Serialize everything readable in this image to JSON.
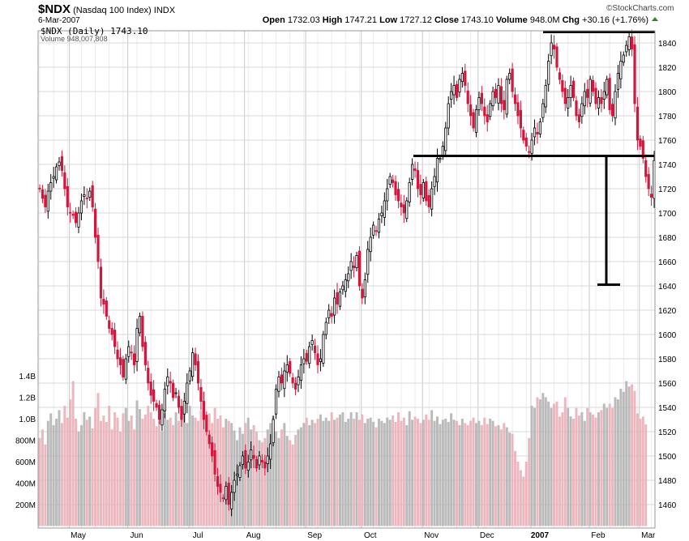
{
  "header": {
    "symbol": "$NDX",
    "name": "(Nasdaq 100 Index)",
    "exchange": "INDX",
    "date": "6-Mar-2007",
    "open_label": "Open",
    "open": "1732.03",
    "high_label": "High",
    "high": "1747.21",
    "low_label": "Low",
    "low": "1727.12",
    "close_label": "Close",
    "close": "1743.10",
    "volume_label": "Volume",
    "volume": "948.0M",
    "chg_label": "Chg",
    "chg": "+30.16 (+1.76%)",
    "copyright": "©StockCharts.com"
  },
  "legend": {
    "price": "$NDX (Daily) 1743.10",
    "volume": "Volume 948,007,808"
  },
  "colors": {
    "up": "#000000",
    "down": "#d2163c",
    "vol_up": "#b4b4b4",
    "vol_down": "#eab0b8",
    "grid": "#d8d8d8"
  },
  "chart_data": {
    "type": "candlestick",
    "price_axis": {
      "min": 1450,
      "max": 1850,
      "ticks": [
        1460,
        1480,
        1500,
        1520,
        1540,
        1560,
        1580,
        1600,
        1620,
        1640,
        1660,
        1680,
        1700,
        1720,
        1740,
        1760,
        1780,
        1800,
        1820,
        1840
      ]
    },
    "volume_axis": {
      "ticks": [
        {
          "v": 200,
          "label": "200M"
        },
        {
          "v": 400,
          "label": "400M"
        },
        {
          "v": 600,
          "label": "600M"
        },
        {
          "v": 800,
          "label": "800M"
        },
        {
          "v": 1000,
          "label": "1.0B"
        },
        {
          "v": 1200,
          "label": "1.2B"
        },
        {
          "v": 1400,
          "label": "1.4B"
        }
      ]
    },
    "months": [
      {
        "i": 13,
        "label": "May"
      },
      {
        "i": 34,
        "label": "Jun"
      },
      {
        "i": 56,
        "label": "Jul"
      },
      {
        "i": 76,
        "label": "Aug"
      },
      {
        "i": 98,
        "label": "Sep"
      },
      {
        "i": 118,
        "label": "Oct"
      },
      {
        "i": 140,
        "label": "Nov"
      },
      {
        "i": 160,
        "label": "Dec"
      },
      {
        "i": 179,
        "label": "2007",
        "bold": true
      },
      {
        "i": 200,
        "label": "Feb"
      },
      {
        "i": 218,
        "label": "Mar"
      }
    ],
    "close": [
      1720,
      1712,
      1705,
      1718,
      1725,
      1730,
      1738,
      1742,
      1735,
      1720,
      1705,
      1700,
      1698,
      1692,
      1700,
      1710,
      1715,
      1712,
      1718,
      1705,
      1680,
      1660,
      1630,
      1625,
      1615,
      1605,
      1600,
      1590,
      1580,
      1575,
      1565,
      1580,
      1590,
      1585,
      1575,
      1605,
      1615,
      1590,
      1575,
      1560,
      1550,
      1545,
      1540,
      1530,
      1538,
      1555,
      1565,
      1560,
      1548,
      1552,
      1540,
      1530,
      1545,
      1560,
      1570,
      1585,
      1575,
      1560,
      1545,
      1530,
      1520,
      1510,
      1500,
      1485,
      1475,
      1470,
      1465,
      1475,
      1460,
      1470,
      1480,
      1485,
      1492,
      1500,
      1490,
      1495,
      1505,
      1498,
      1490,
      1500,
      1495,
      1490,
      1500,
      1510,
      1530,
      1555,
      1565,
      1560,
      1570,
      1575,
      1568,
      1560,
      1555,
      1565,
      1575,
      1580,
      1578,
      1590,
      1595,
      1585,
      1575,
      1580,
      1600,
      1610,
      1620,
      1615,
      1630,
      1625,
      1635,
      1640,
      1645,
      1650,
      1660,
      1655,
      1665,
      1640,
      1630,
      1645,
      1670,
      1680,
      1690,
      1685,
      1695,
      1700,
      1710,
      1720,
      1730,
      1725,
      1715,
      1710,
      1705,
      1700,
      1710,
      1725,
      1740,
      1735,
      1720,
      1715,
      1725,
      1710,
      1705,
      1720,
      1730,
      1745,
      1745,
      1755,
      1770,
      1790,
      1800,
      1805,
      1795,
      1810,
      1815,
      1805,
      1790,
      1780,
      1770,
      1785,
      1795,
      1790,
      1780,
      1775,
      1790,
      1800,
      1795,
      1805,
      1790,
      1785,
      1810,
      1815,
      1800,
      1790,
      1780,
      1770,
      1760,
      1755,
      1750,
      1760,
      1770,
      1765,
      1775,
      1790,
      1805,
      1825,
      1840,
      1835,
      1820,
      1810,
      1800,
      1790,
      1795,
      1805,
      1795,
      1780,
      1775,
      1790,
      1800,
      1795,
      1810,
      1800,
      1790,
      1795,
      1790,
      1800,
      1810,
      1785,
      1780,
      1800,
      1815,
      1825,
      1830,
      1838,
      1845,
      1835,
      1790,
      1760,
      1755,
      1745,
      1730,
      1720,
      1713,
      1743.1
    ],
    "volume": [
      820,
      900,
      760,
      980,
      1050,
      940,
      1000,
      1080,
      960,
      1120,
      1010,
      1180,
      1350,
      1000,
      880,
      940,
      1060,
      990,
      1020,
      910,
      1100,
      1240,
      980,
      1030,
      970,
      1120,
      900,
      1060,
      1010,
      880,
      1050,
      1100,
      980,
      1030,
      900,
      1170,
      1090,
      1000,
      1040,
      1120,
      1060,
      1000,
      930,
      980,
      880,
      1050,
      990,
      1010,
      940,
      1060,
      980,
      1000,
      1100,
      960,
      1120,
      1030,
      1010,
      980,
      1080,
      1250,
      1000,
      1050,
      960,
      1100,
      1000,
      1030,
      920,
      1000,
      980,
      960,
      890,
      800,
      920,
      860,
      960,
      1010,
      900,
      940,
      880,
      800,
      780,
      820,
      900,
      960,
      1030,
      880,
      820,
      900,
      960,
      840,
      800,
      760,
      850,
      900,
      920,
      960,
      1010,
      940,
      990,
      960,
      1000,
      1040,
      980,
      1010,
      980,
      1060,
      990,
      1010,
      1040,
      1060,
      970,
      1000,
      1060,
      1000,
      1060,
      990,
      1040,
      960,
      1000,
      1010,
      970,
      920,
      1000,
      980,
      960,
      1010,
      990,
      1030,
      970,
      1060,
      980,
      1010,
      940,
      1070,
      990,
      1020,
      1000,
      960,
      990,
      1040,
      990,
      1080,
      980,
      1020,
      950,
      990,
      1000,
      970,
      1050,
      990,
      980,
      940,
      1000,
      960,
      940,
      980,
      1010,
      960,
      980,
      940,
      1010,
      950,
      1000,
      980,
      930,
      940,
      900,
      960,
      920,
      870,
      860,
      700,
      600,
      520,
      460,
      600,
      820,
      1120,
      1100,
      1200,
      1180,
      1240,
      1200,
      1160,
      1100,
      1140,
      1160,
      1020,
      1060,
      1200,
      1100,
      1020,
      1000,
      1100,
      1030,
      1060,
      980,
      1100,
      1060,
      1040,
      1010,
      1060,
      1080,
      1140,
      1100,
      1140,
      1100,
      1200,
      1180,
      1280,
      1250,
      1350,
      1300,
      1320,
      1260,
      1050,
      1000,
      1020,
      948
    ]
  },
  "annotations": {
    "resistance": 1849,
    "support": 1747,
    "target": 1641
  }
}
